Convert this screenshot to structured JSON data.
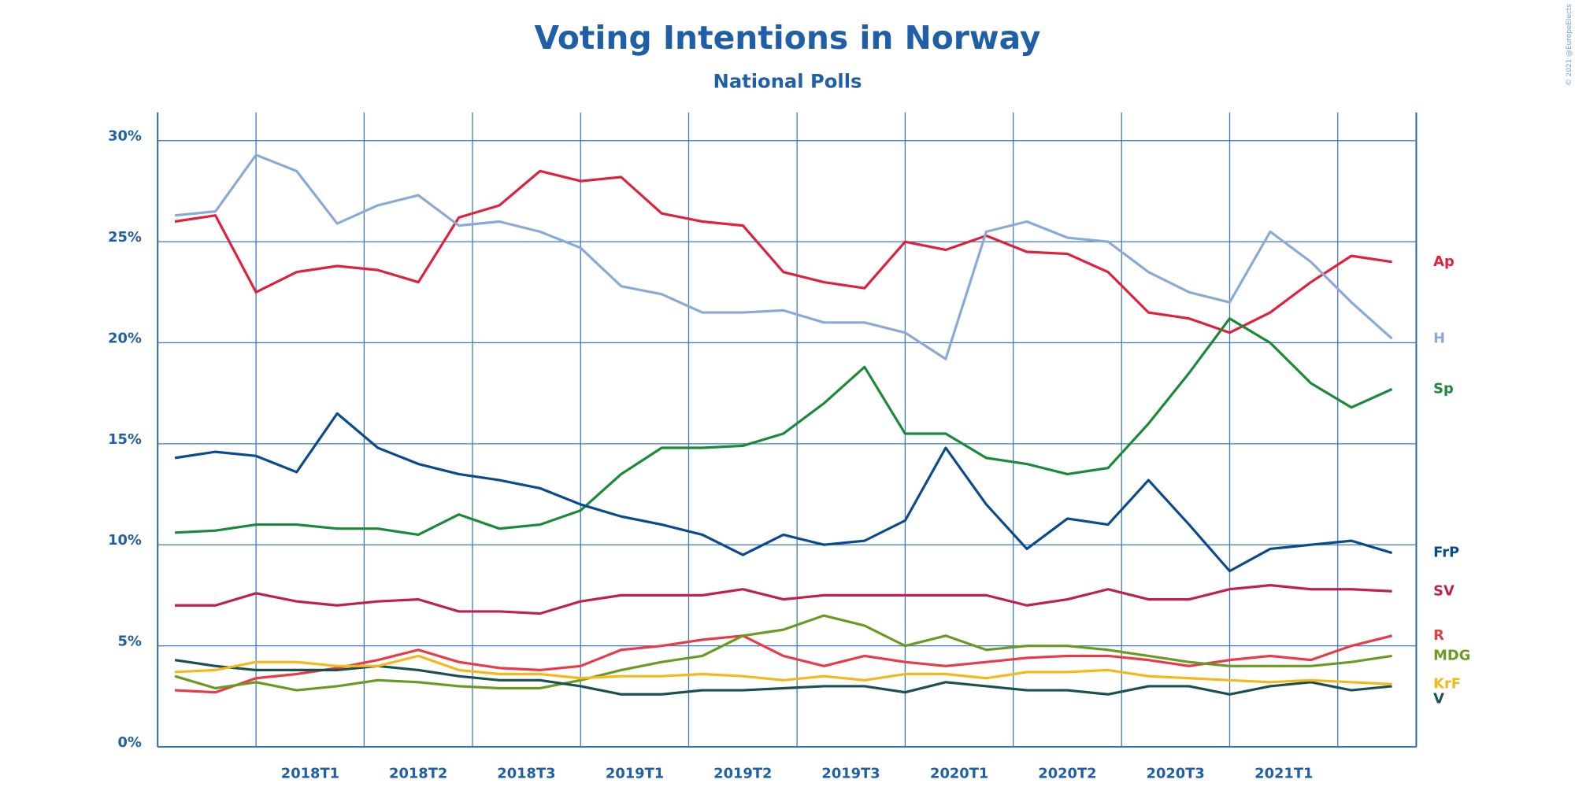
{
  "chart_data": {
    "type": "line",
    "title": "Voting Intentions in Norway",
    "subtitle": "National Polls",
    "credit": "© 2021 @EuropeElects",
    "grid": true,
    "xlim": [
      2017.697,
      2021.575
    ],
    "xgrid": [
      2018,
      2018.333,
      2018.667,
      2019,
      2019.333,
      2019.667,
      2020,
      2020.333,
      2020.667,
      2021,
      2021.333
    ],
    "xticks": [
      {
        "value": 2018.167,
        "label": "2018T1"
      },
      {
        "value": 2018.5,
        "label": "2018T2"
      },
      {
        "value": 2018.833,
        "label": "2018T3"
      },
      {
        "value": 2019.167,
        "label": "2019T1"
      },
      {
        "value": 2019.5,
        "label": "2019T2"
      },
      {
        "value": 2019.833,
        "label": "2019T3"
      },
      {
        "value": 2020.167,
        "label": "2020T1"
      },
      {
        "value": 2020.5,
        "label": "2020T2"
      },
      {
        "value": 2020.833,
        "label": "2020T3"
      },
      {
        "value": 2021.167,
        "label": "2021T1"
      }
    ],
    "ylim": [
      0,
      31.4
    ],
    "yticks": [
      {
        "value": 0,
        "label": "0%"
      },
      {
        "value": 5,
        "label": "5%"
      },
      {
        "value": 10,
        "label": "10%"
      },
      {
        "value": 15,
        "label": "15%"
      },
      {
        "value": 20,
        "label": "20%"
      },
      {
        "value": 25,
        "label": "25%"
      },
      {
        "value": 30,
        "label": "30%"
      }
    ],
    "x": [
      2017.75,
      2017.875,
      2018,
      2018.125,
      2018.25,
      2018.375,
      2018.5,
      2018.625,
      2018.75,
      2018.875,
      2019,
      2019.125,
      2019.25,
      2019.375,
      2019.5,
      2019.625,
      2019.75,
      2019.875,
      2020,
      2020.125,
      2020.25,
      2020.375,
      2020.5,
      2020.625,
      2020.75,
      2020.875,
      2021,
      2021.125,
      2021.25,
      2021.375,
      2021.5
    ],
    "series": [
      {
        "name": "Ap",
        "color": "#e0203c",
        "values": [
          26.0,
          26.3,
          22.5,
          23.5,
          23.8,
          23.6,
          23.0,
          26.2,
          26.8,
          28.5,
          28.0,
          28.2,
          26.4,
          26.0,
          25.8,
          23.5,
          23.0,
          22.7,
          25.0,
          24.6,
          25.3,
          24.5,
          24.4,
          23.5,
          21.5,
          21.2,
          20.5,
          21.5,
          23.0,
          24.3,
          24.0
        ]
      },
      {
        "name": "H",
        "color": "#8aaad6",
        "values": [
          26.3,
          26.5,
          29.3,
          28.5,
          25.9,
          26.8,
          27.3,
          25.8,
          26.0,
          25.5,
          24.7,
          22.8,
          22.4,
          21.5,
          21.5,
          21.6,
          21.0,
          21.0,
          20.5,
          19.2,
          25.5,
          26.0,
          25.2,
          25.0,
          23.5,
          22.5,
          22.0,
          25.5,
          24.0,
          22.0,
          20.2
        ]
      },
      {
        "name": "Sp",
        "color": "#1a8a3a",
        "values": [
          10.6,
          10.7,
          11.0,
          11.0,
          10.8,
          10.8,
          10.5,
          11.5,
          10.8,
          11.0,
          11.7,
          13.5,
          14.8,
          14.8,
          14.9,
          15.5,
          17.0,
          18.8,
          15.5,
          15.5,
          14.3,
          14.0,
          13.5,
          13.8,
          16.0,
          18.5,
          21.2,
          20.0,
          18.0,
          16.8,
          17.7
        ]
      },
      {
        "name": "FrP",
        "color": "#0a4a8e",
        "values": [
          14.3,
          14.6,
          14.4,
          13.6,
          16.5,
          14.8,
          14.0,
          13.5,
          13.2,
          12.8,
          12.0,
          11.4,
          11.0,
          10.5,
          9.5,
          10.5,
          10.0,
          10.2,
          11.2,
          14.8,
          12.0,
          9.8,
          11.3,
          11.0,
          13.2,
          11.0,
          8.7,
          9.8,
          10.0,
          10.2,
          9.6
        ]
      },
      {
        "name": "SV",
        "color": "#c0204a",
        "values": [
          7.0,
          7.0,
          7.6,
          7.2,
          7.0,
          7.2,
          7.3,
          6.7,
          6.7,
          6.6,
          7.2,
          7.5,
          7.5,
          7.5,
          7.8,
          7.3,
          7.5,
          7.5,
          7.5,
          7.5,
          7.5,
          7.0,
          7.3,
          7.8,
          7.3,
          7.3,
          7.8,
          8.0,
          7.8,
          7.8,
          7.7
        ]
      },
      {
        "name": "R",
        "color": "#ea3a48",
        "values": [
          2.8,
          2.7,
          3.4,
          3.6,
          3.9,
          4.3,
          4.8,
          4.2,
          3.9,
          3.8,
          4.0,
          4.8,
          5.0,
          5.3,
          5.5,
          4.5,
          4.0,
          4.5,
          4.2,
          4.0,
          4.2,
          4.4,
          4.5,
          4.5,
          4.3,
          4.0,
          4.3,
          4.5,
          4.3,
          5.0,
          5.5
        ]
      },
      {
        "name": "MDG",
        "color": "#6a9a20",
        "values": [
          3.5,
          2.9,
          3.2,
          2.8,
          3.0,
          3.3,
          3.2,
          3.0,
          2.9,
          2.9,
          3.3,
          3.8,
          4.2,
          4.5,
          5.5,
          5.8,
          6.5,
          6.0,
          5.0,
          5.5,
          4.8,
          5.0,
          5.0,
          4.8,
          4.5,
          4.2,
          4.0,
          4.0,
          4.0,
          4.2,
          4.5
        ]
      },
      {
        "name": "V",
        "color": "#1a5050",
        "values": [
          4.3,
          4.0,
          3.8,
          3.8,
          3.8,
          4.0,
          3.8,
          3.5,
          3.3,
          3.3,
          3.0,
          2.6,
          2.6,
          2.8,
          2.8,
          2.9,
          3.0,
          3.0,
          2.7,
          3.2,
          3.0,
          2.8,
          2.8,
          2.6,
          3.0,
          3.0,
          2.6,
          3.0,
          3.2,
          2.8,
          3.0
        ]
      },
      {
        "name": "KrF",
        "color": "#f5b818",
        "values": [
          3.7,
          3.8,
          4.2,
          4.2,
          4.0,
          4.0,
          4.5,
          3.8,
          3.6,
          3.6,
          3.4,
          3.5,
          3.5,
          3.6,
          3.5,
          3.3,
          3.5,
          3.3,
          3.6,
          3.6,
          3.4,
          3.7,
          3.7,
          3.8,
          3.5,
          3.4,
          3.3,
          3.2,
          3.3,
          3.2,
          3.1
        ]
      }
    ]
  }
}
